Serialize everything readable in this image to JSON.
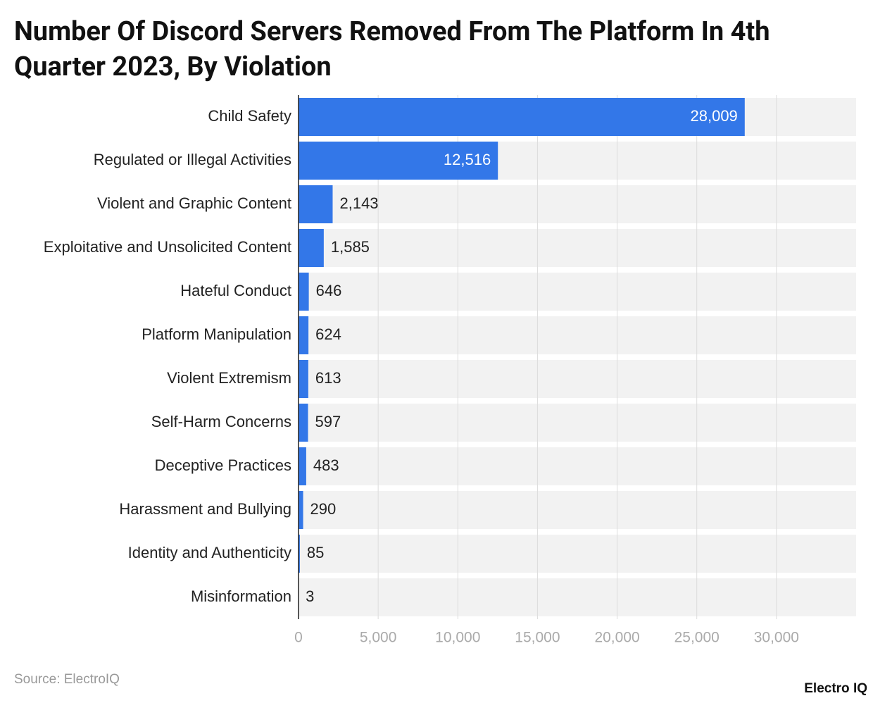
{
  "chart_data": {
    "type": "bar",
    "orientation": "horizontal",
    "title": "Number Of Discord Servers Removed From The Platform In 4th Quarter 2023, By Violation",
    "categories": [
      "Child Safety",
      "Regulated or Illegal Activities",
      "Violent and Graphic Content",
      "Exploitative and Unsolicited Content",
      "Hateful Conduct",
      "Platform Manipulation",
      "Violent Extremism",
      "Self-Harm Concerns",
      "Deceptive Practices",
      "Harassment and Bullying",
      "Identity and Authenticity",
      "Misinformation"
    ],
    "values": [
      28009,
      12516,
      2143,
      1585,
      646,
      624,
      613,
      597,
      483,
      290,
      85,
      3
    ],
    "value_labels": [
      "28,009",
      "12,516",
      "2,143",
      "1,585",
      "646",
      "624",
      "613",
      "597",
      "483",
      "290",
      "85",
      "3"
    ],
    "color": "#3377e8",
    "xlim": [
      0,
      35000
    ],
    "xticks": [
      0,
      {
        "value": 5000,
        "label": "5,000"
      },
      {
        "value": 10000,
        "label": "10,000"
      },
      {
        "value": 15000,
        "label": "15,000"
      },
      {
        "value": 20000,
        "label": "20,000"
      },
      {
        "value": 25000,
        "label": "25,000"
      },
      {
        "value": 30000,
        "label": "30,000"
      }
    ],
    "grid": true,
    "source": "Source: ElectroIQ",
    "brand": "Electro IQ"
  }
}
